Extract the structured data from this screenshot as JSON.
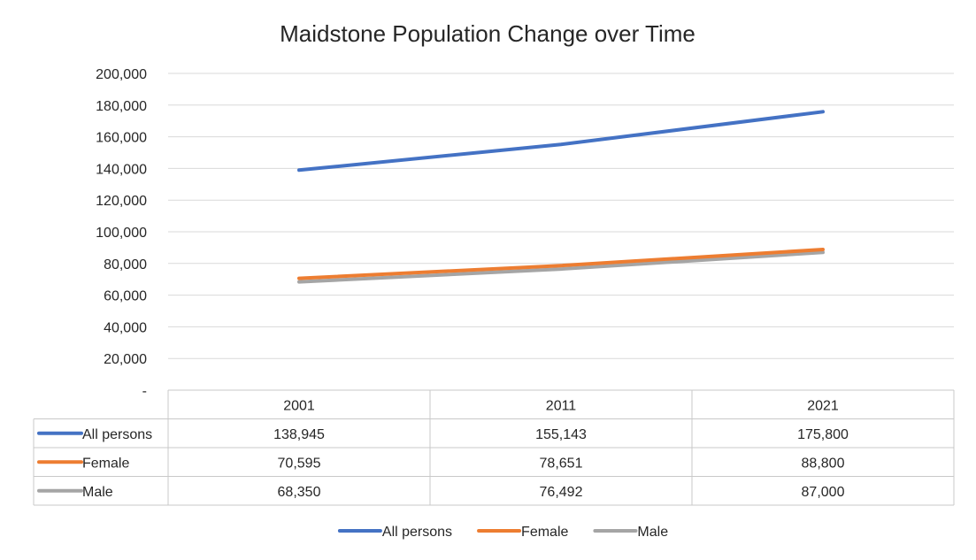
{
  "chart_data": {
    "type": "line",
    "title": "Maidstone Population Change over Time",
    "xlabel": "",
    "ylabel": "",
    "categories": [
      "2001",
      "2011",
      "2021"
    ],
    "ylim": [
      0,
      200000
    ],
    "yticks": [
      "-",
      "20,000",
      "40,000",
      "60,000",
      "80,000",
      "100,000",
      "120,000",
      "140,000",
      "160,000",
      "180,000",
      "200,000"
    ],
    "grid": true,
    "legend_position": "bottom",
    "series": [
      {
        "name": "All persons",
        "values": [
          138945,
          155143,
          175800
        ],
        "display": [
          "138,945",
          "155,143",
          "175,800"
        ],
        "color": "#4472C4"
      },
      {
        "name": "Female",
        "values": [
          70595,
          78651,
          88800
        ],
        "display": [
          "70,595",
          "78,651",
          "88,800"
        ],
        "color": "#ED7D31"
      },
      {
        "name": "Male",
        "values": [
          68350,
          76492,
          87000
        ],
        "display": [
          "68,350",
          "76,492",
          "87,000"
        ],
        "color": "#A5A5A5"
      }
    ]
  }
}
